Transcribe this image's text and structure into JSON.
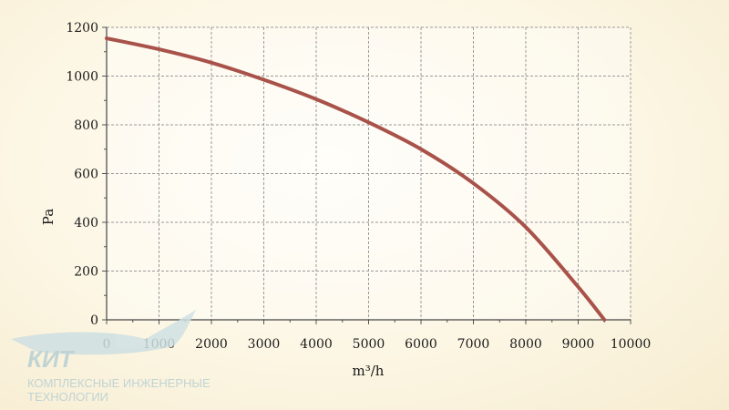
{
  "chart_data": {
    "type": "line",
    "xlabel": "m³/h",
    "ylabel": "Pa",
    "xlim": [
      0,
      10000
    ],
    "ylim": [
      0,
      1200
    ],
    "x_ticks": [
      0,
      1000,
      2000,
      3000,
      4000,
      5000,
      6000,
      7000,
      8000,
      9000,
      10000
    ],
    "y_ticks": [
      0,
      200,
      400,
      600,
      800,
      1000,
      1200
    ],
    "grid": true,
    "series": [
      {
        "color": "#a8524a",
        "x": [
          0,
          1000,
          2000,
          3000,
          4000,
          5000,
          6000,
          7000,
          8000,
          9000,
          9500
        ],
        "y": [
          1155,
          1110,
          1055,
          985,
          905,
          810,
          700,
          560,
          380,
          135,
          0
        ]
      }
    ]
  },
  "logo": {
    "name": "КИТ",
    "tagline_line1": "КОМПЛЕКСНЫЕ ИНЖЕНЕРНЫЕ",
    "tagline_line2": "ТЕХНОЛОГИИ"
  }
}
